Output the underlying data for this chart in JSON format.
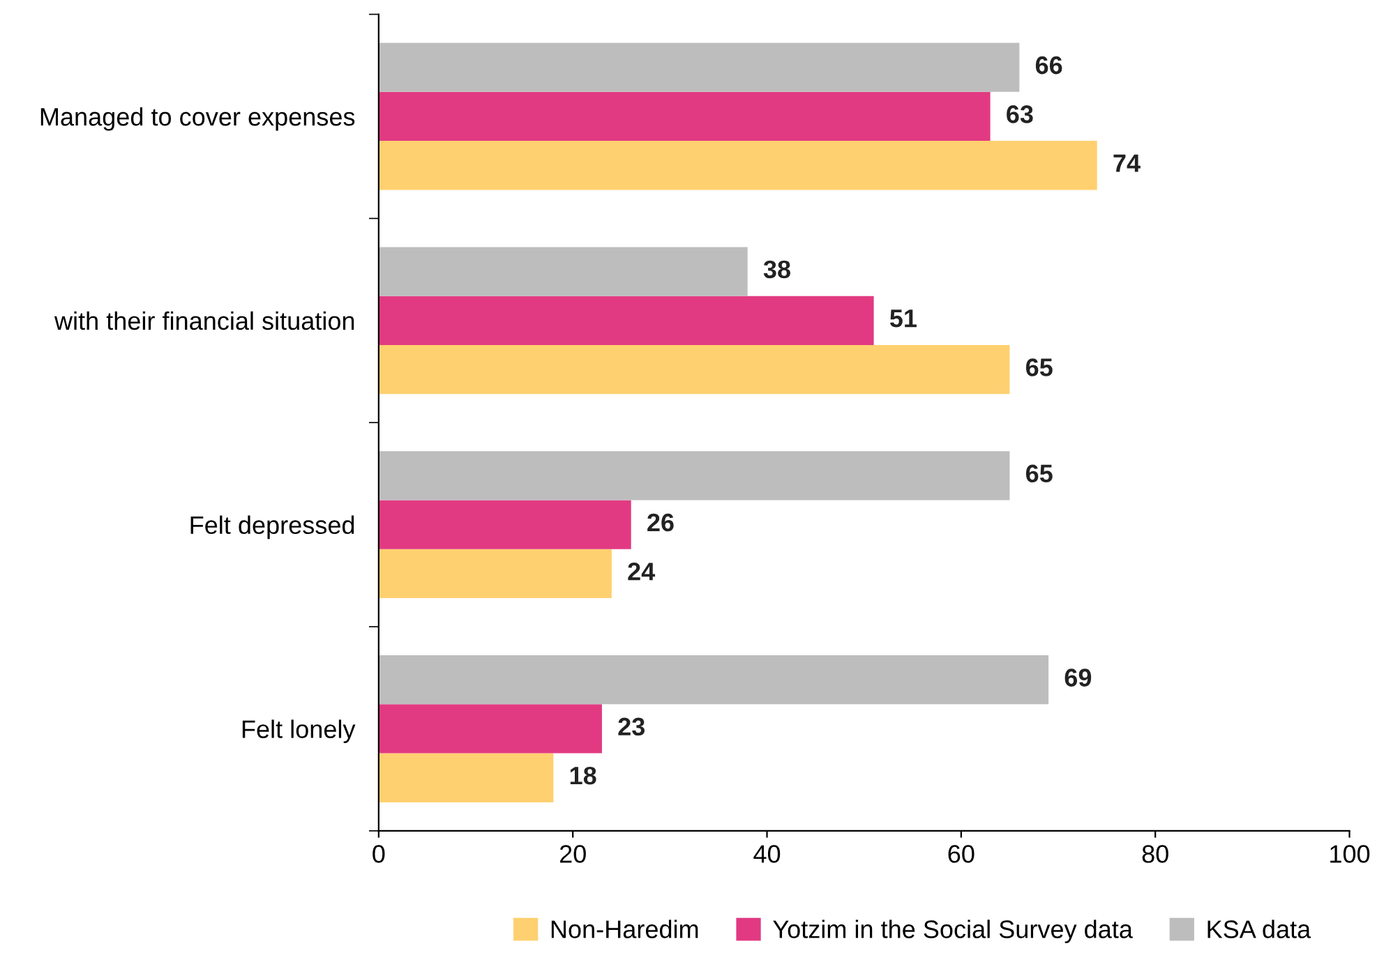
{
  "chart_data": {
    "type": "bar",
    "orientation": "horizontal",
    "categories": [
      "Managed to cover expenses",
      "with their financial situation",
      "Felt depressed",
      "Felt lonely"
    ],
    "series": [
      {
        "name": "Non-Haredim",
        "color": "#ffd070",
        "values": [
          74,
          65,
          24,
          18
        ]
      },
      {
        "name": "Yotzim in the Social Survey data",
        "color": "#e23a82",
        "values": [
          63,
          51,
          26,
          23
        ]
      },
      {
        "name": "KSA data",
        "color": "#bdbdbe",
        "values": [
          66,
          38,
          65,
          69
        ]
      }
    ],
    "xlim": [
      0,
      100
    ],
    "xticks": [
      0,
      20,
      40,
      60,
      80,
      100
    ],
    "data_labels": true,
    "grid": false,
    "legend": "bottom"
  }
}
